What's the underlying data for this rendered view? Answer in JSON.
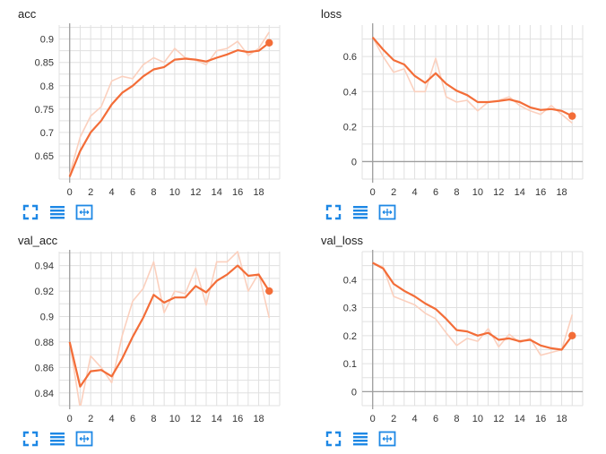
{
  "colors": {
    "line": "#f36d38",
    "raw": "#fbd0be",
    "grid": "#e0e0e0",
    "axis": "#9e9e9e",
    "icon": "#1e88e5"
  },
  "toolbar": {
    "buttons": [
      {
        "icon": "fullscreen-icon"
      },
      {
        "icon": "toggle-log-scale-icon"
      },
      {
        "icon": "fit-domain-icon"
      }
    ]
  },
  "chart_data": [
    {
      "type": "line",
      "title": "acc",
      "xlim": [
        -1,
        20
      ],
      "ylim": [
        0.6,
        0.93
      ],
      "xticks": [
        0,
        2,
        4,
        6,
        8,
        10,
        12,
        14,
        16,
        18
      ],
      "yticks": [
        0.65,
        0.7,
        0.75,
        0.8,
        0.85,
        0.9
      ],
      "ytick_labels": [
        "0.65",
        "0.7",
        "0.75",
        "0.8",
        "0.85",
        "0.9"
      ],
      "x": [
        0,
        1,
        2,
        3,
        4,
        5,
        6,
        7,
        8,
        9,
        10,
        11,
        12,
        13,
        14,
        15,
        16,
        17,
        18,
        19
      ],
      "series": [
        {
          "role": "raw",
          "values": [
            0.61,
            0.69,
            0.735,
            0.755,
            0.81,
            0.82,
            0.815,
            0.845,
            0.86,
            0.85,
            0.88,
            0.86,
            0.855,
            0.845,
            0.875,
            0.88,
            0.895,
            0.865,
            0.88,
            0.915
          ]
        },
        {
          "role": "smoothed",
          "values": [
            0.605,
            0.66,
            0.7,
            0.725,
            0.76,
            0.785,
            0.8,
            0.82,
            0.835,
            0.84,
            0.856,
            0.858,
            0.856,
            0.852,
            0.86,
            0.867,
            0.876,
            0.872,
            0.875,
            0.892
          ]
        }
      ]
    },
    {
      "type": "line",
      "title": "loss",
      "xlim": [
        -1,
        20
      ],
      "ylim": [
        -0.1,
        0.78
      ],
      "xticks": [
        0,
        2,
        4,
        6,
        8,
        10,
        12,
        14,
        16,
        18
      ],
      "yticks": [
        0,
        0.2,
        0.4,
        0.6
      ],
      "ytick_labels": [
        "0",
        "0.2",
        "0.4",
        "0.6"
      ],
      "x": [
        0,
        1,
        2,
        3,
        4,
        5,
        6,
        7,
        8,
        9,
        10,
        11,
        12,
        13,
        14,
        15,
        16,
        17,
        18,
        19
      ],
      "series": [
        {
          "role": "raw",
          "values": [
            0.71,
            0.6,
            0.51,
            0.53,
            0.4,
            0.4,
            0.59,
            0.37,
            0.34,
            0.35,
            0.29,
            0.34,
            0.35,
            0.37,
            0.32,
            0.29,
            0.27,
            0.32,
            0.27,
            0.22
          ]
        },
        {
          "role": "smoothed",
          "values": [
            0.71,
            0.64,
            0.58,
            0.555,
            0.49,
            0.45,
            0.505,
            0.445,
            0.405,
            0.38,
            0.34,
            0.34,
            0.346,
            0.355,
            0.34,
            0.31,
            0.295,
            0.3,
            0.29,
            0.26
          ]
        }
      ]
    },
    {
      "type": "line",
      "title": "val_acc",
      "xlim": [
        -1,
        20
      ],
      "ylim": [
        0.83,
        0.951
      ],
      "xticks": [
        0,
        2,
        4,
        6,
        8,
        10,
        12,
        14,
        16,
        18
      ],
      "yticks": [
        0.84,
        0.86,
        0.88,
        0.9,
        0.92,
        0.94
      ],
      "ytick_labels": [
        "0.84",
        "0.86",
        "0.88",
        "0.9",
        "0.92",
        "0.94"
      ],
      "x": [
        0,
        1,
        2,
        3,
        4,
        5,
        6,
        7,
        8,
        9,
        10,
        11,
        12,
        13,
        14,
        15,
        16,
        17,
        18,
        19
      ],
      "series": [
        {
          "role": "raw",
          "values": [
            0.88,
            0.828,
            0.869,
            0.86,
            0.848,
            0.885,
            0.912,
            0.922,
            0.943,
            0.903,
            0.92,
            0.918,
            0.938,
            0.909,
            0.943,
            0.943,
            0.951,
            0.92,
            0.934,
            0.899
          ]
        },
        {
          "role": "smoothed",
          "values": [
            0.88,
            0.845,
            0.857,
            0.858,
            0.853,
            0.867,
            0.884,
            0.899,
            0.917,
            0.911,
            0.915,
            0.915,
            0.924,
            0.919,
            0.928,
            0.933,
            0.94,
            0.932,
            0.933,
            0.92
          ]
        }
      ]
    },
    {
      "type": "line",
      "title": "val_loss",
      "xlim": [
        -1,
        20
      ],
      "ylim": [
        -0.05,
        0.5
      ],
      "xticks": [
        0,
        2,
        4,
        6,
        8,
        10,
        12,
        14,
        16,
        18
      ],
      "yticks": [
        0,
        0.1,
        0.2,
        0.3,
        0.4
      ],
      "ytick_labels": [
        "0",
        "0.1",
        "0.2",
        "0.3",
        "0.4"
      ],
      "x": [
        0,
        1,
        2,
        3,
        4,
        5,
        6,
        7,
        8,
        9,
        10,
        11,
        12,
        13,
        14,
        15,
        16,
        17,
        18,
        19
      ],
      "series": [
        {
          "role": "raw",
          "values": [
            0.46,
            0.445,
            0.34,
            0.325,
            0.31,
            0.28,
            0.26,
            0.21,
            0.165,
            0.19,
            0.18,
            0.225,
            0.16,
            0.205,
            0.175,
            0.19,
            0.13,
            0.14,
            0.15,
            0.275
          ]
        },
        {
          "role": "smoothed",
          "values": [
            0.46,
            0.44,
            0.385,
            0.36,
            0.34,
            0.315,
            0.295,
            0.26,
            0.22,
            0.215,
            0.2,
            0.21,
            0.185,
            0.19,
            0.18,
            0.185,
            0.165,
            0.155,
            0.15,
            0.2
          ]
        }
      ]
    }
  ]
}
